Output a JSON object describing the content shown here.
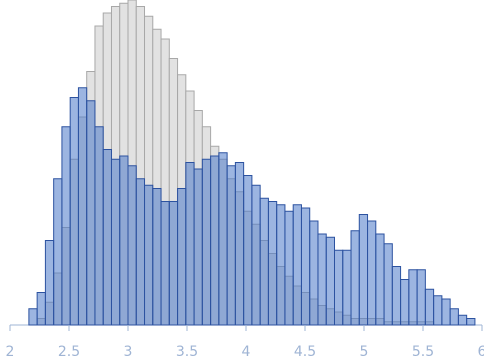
{
  "chart_data": {
    "type": "histogram",
    "bins": [
      2.16,
      2.23,
      2.3,
      2.37,
      2.44,
      2.51,
      2.58,
      2.65,
      2.72,
      2.79,
      2.86,
      2.93,
      3,
      3.07,
      3.14,
      3.21,
      3.28,
      3.35,
      3.42,
      3.49,
      3.56,
      3.63,
      3.7,
      3.77,
      3.84,
      3.91,
      3.98,
      4.05,
      4.12,
      4.19,
      4.26,
      4.33,
      4.4,
      4.47,
      4.54,
      4.61,
      4.68,
      4.75,
      4.82,
      4.89,
      4.96,
      5.03,
      5.1,
      5.17,
      5.24,
      5.31,
      5.38,
      5.45,
      5.52,
      5.59,
      5.66,
      5.73,
      5.8,
      5.87,
      5.94
    ],
    "series": [
      {
        "color": "#e2e2e2",
        "values": [
          0,
          2,
          7,
          16,
          30,
          51,
          64,
          78,
          92,
          96,
          98,
          99,
          100,
          98,
          95,
          91,
          88,
          82,
          77,
          72,
          66,
          61,
          55,
          51,
          45,
          41,
          35,
          31,
          26,
          22,
          18,
          15,
          12,
          10,
          8,
          6,
          5,
          4,
          3,
          2,
          2,
          2,
          2,
          1,
          1,
          1,
          1,
          1,
          1,
          0,
          0,
          0,
          0,
          0
        ]
      },
      {
        "color": "#4a78c8",
        "values": [
          5,
          10,
          26,
          45,
          61,
          70,
          73,
          69,
          61,
          54,
          51,
          52,
          49,
          45,
          43,
          42,
          38,
          38,
          42,
          50,
          48,
          51,
          52,
          53,
          49,
          50,
          46,
          43,
          39,
          38,
          37,
          35,
          37,
          36,
          32,
          28,
          27,
          23,
          23,
          29,
          34,
          32,
          28,
          25,
          18,
          14,
          17,
          17,
          11,
          9,
          8,
          5,
          3,
          2
        ]
      }
    ],
    "xlim": [
      2,
      6
    ],
    "xticks": [
      2,
      2.5,
      3,
      3.5,
      4,
      4.5,
      5,
      5.5,
      6
    ],
    "ylim": [
      0,
      100
    ]
  }
}
